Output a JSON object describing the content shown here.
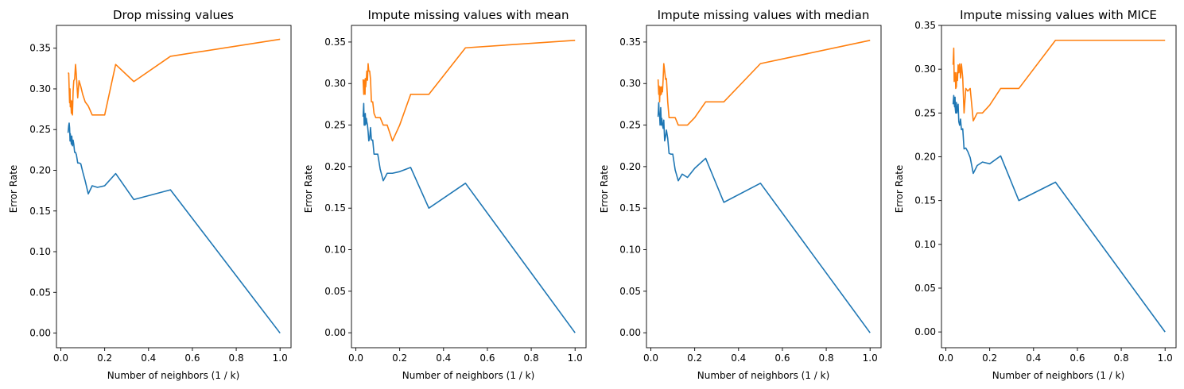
{
  "figure": {
    "colors": {
      "series_0": "#1f77b4",
      "series_1": "#ff7f0e",
      "axis": "#000000"
    }
  },
  "chart_data": [
    {
      "type": "line",
      "title": "Drop missing values",
      "xlabel": "Number of neighbors (1 / k)",
      "ylabel": "Error Rate",
      "xlim": [
        -0.02,
        1.05
      ],
      "ylim": [
        -0.018,
        0.378
      ],
      "xticks": [
        "0.0",
        "0.2",
        "0.4",
        "0.6",
        "0.8",
        "1.0"
      ],
      "yticks": [
        "0.00",
        "0.05",
        "0.10",
        "0.15",
        "0.20",
        "0.25",
        "0.30",
        "0.35"
      ],
      "grid": false,
      "series": [
        {
          "x": [
            0.033,
            0.036,
            0.038,
            0.04,
            0.042,
            0.043,
            0.045,
            0.048,
            0.05,
            0.053,
            0.056,
            0.059,
            0.063,
            0.067,
            0.071,
            0.077,
            0.083,
            0.091,
            0.1,
            0.111,
            0.125,
            0.143,
            0.167,
            0.2,
            0.25,
            0.333,
            0.5,
            1.0
          ],
          "y": [
            0.246,
            0.255,
            0.258,
            0.252,
            0.236,
            0.245,
            0.24,
            0.232,
            0.242,
            0.23,
            0.237,
            0.232,
            0.222,
            0.222,
            0.219,
            0.209,
            0.209,
            0.208,
            0.198,
            0.187,
            0.171,
            0.181,
            0.179,
            0.181,
            0.196,
            0.164,
            0.176,
            0.0
          ]
        },
        {
          "x": [
            0.033,
            0.036,
            0.038,
            0.04,
            0.042,
            0.043,
            0.045,
            0.048,
            0.05,
            0.053,
            0.056,
            0.059,
            0.063,
            0.067,
            0.071,
            0.077,
            0.083,
            0.091,
            0.1,
            0.111,
            0.125,
            0.143,
            0.167,
            0.2,
            0.25,
            0.333,
            0.5,
            1.0
          ],
          "y": [
            0.32,
            0.319,
            0.3,
            0.283,
            0.3,
            0.278,
            0.286,
            0.27,
            0.285,
            0.268,
            0.297,
            0.31,
            0.312,
            0.33,
            0.316,
            0.289,
            0.31,
            0.303,
            0.293,
            0.284,
            0.279,
            0.268,
            0.268,
            0.268,
            0.33,
            0.309,
            0.34,
            0.361
          ]
        }
      ]
    },
    {
      "type": "line",
      "title": "Impute missing values with mean",
      "xlabel": "Number of neighbors (1 / k)",
      "ylabel": "Error Rate",
      "xlim": [
        -0.02,
        1.05
      ],
      "ylim": [
        -0.018,
        0.37
      ],
      "xticks": [
        "0.0",
        "0.2",
        "0.4",
        "0.6",
        "0.8",
        "1.0"
      ],
      "yticks": [
        "0.00",
        "0.05",
        "0.10",
        "0.15",
        "0.20",
        "0.25",
        "0.30",
        "0.35"
      ],
      "grid": false,
      "series": [
        {
          "x": [
            0.033,
            0.036,
            0.038,
            0.04,
            0.042,
            0.043,
            0.045,
            0.048,
            0.05,
            0.053,
            0.056,
            0.059,
            0.063,
            0.067,
            0.071,
            0.077,
            0.083,
            0.091,
            0.1,
            0.111,
            0.125,
            0.143,
            0.167,
            0.2,
            0.25,
            0.333,
            0.5,
            1.0
          ],
          "y": [
            0.26,
            0.276,
            0.25,
            0.263,
            0.25,
            0.264,
            0.251,
            0.258,
            0.254,
            0.25,
            0.242,
            0.231,
            0.234,
            0.247,
            0.232,
            0.232,
            0.215,
            0.215,
            0.215,
            0.197,
            0.183,
            0.192,
            0.192,
            0.194,
            0.199,
            0.15,
            0.18,
            0.0
          ]
        },
        {
          "x": [
            0.033,
            0.036,
            0.038,
            0.04,
            0.042,
            0.043,
            0.045,
            0.048,
            0.05,
            0.053,
            0.056,
            0.059,
            0.063,
            0.067,
            0.071,
            0.077,
            0.083,
            0.091,
            0.1,
            0.111,
            0.125,
            0.143,
            0.167,
            0.2,
            0.25,
            0.333,
            0.5,
            1.0
          ],
          "y": [
            0.305,
            0.287,
            0.304,
            0.3,
            0.287,
            0.306,
            0.296,
            0.306,
            0.315,
            0.304,
            0.324,
            0.315,
            0.315,
            0.305,
            0.278,
            0.278,
            0.264,
            0.259,
            0.259,
            0.259,
            0.25,
            0.25,
            0.231,
            0.25,
            0.287,
            0.287,
            0.343,
            0.352
          ]
        }
      ]
    },
    {
      "type": "line",
      "title": "Impute missing values with median",
      "xlabel": "Number of neighbors (1 / k)",
      "ylabel": "Error Rate",
      "xlim": [
        -0.02,
        1.05
      ],
      "ylim": [
        -0.018,
        0.37
      ],
      "xticks": [
        "0.0",
        "0.2",
        "0.4",
        "0.6",
        "0.8",
        "1.0"
      ],
      "yticks": [
        "0.00",
        "0.05",
        "0.10",
        "0.15",
        "0.20",
        "0.25",
        "0.30",
        "0.35"
      ],
      "grid": false,
      "series": [
        {
          "x": [
            0.033,
            0.036,
            0.038,
            0.04,
            0.042,
            0.043,
            0.045,
            0.048,
            0.05,
            0.053,
            0.056,
            0.059,
            0.063,
            0.067,
            0.071,
            0.077,
            0.083,
            0.091,
            0.1,
            0.111,
            0.125,
            0.143,
            0.167,
            0.2,
            0.25,
            0.333,
            0.5,
            1.0
          ],
          "y": [
            0.26,
            0.277,
            0.264,
            0.262,
            0.25,
            0.257,
            0.271,
            0.25,
            0.258,
            0.25,
            0.246,
            0.256,
            0.231,
            0.236,
            0.244,
            0.234,
            0.216,
            0.215,
            0.215,
            0.196,
            0.183,
            0.191,
            0.187,
            0.198,
            0.21,
            0.157,
            0.18,
            0.0
          ]
        },
        {
          "x": [
            0.033,
            0.036,
            0.038,
            0.04,
            0.042,
            0.043,
            0.045,
            0.048,
            0.05,
            0.053,
            0.056,
            0.059,
            0.063,
            0.067,
            0.071,
            0.077,
            0.083,
            0.091,
            0.1,
            0.111,
            0.125,
            0.143,
            0.167,
            0.2,
            0.25,
            0.333,
            0.5,
            1.0
          ],
          "y": [
            0.305,
            0.287,
            0.297,
            0.278,
            0.295,
            0.286,
            0.296,
            0.287,
            0.296,
            0.29,
            0.305,
            0.324,
            0.315,
            0.305,
            0.306,
            0.278,
            0.259,
            0.259,
            0.259,
            0.259,
            0.25,
            0.25,
            0.25,
            0.259,
            0.278,
            0.278,
            0.324,
            0.352
          ]
        }
      ]
    },
    {
      "type": "line",
      "title": "Impute missing values with MICE",
      "xlabel": "Number of neighbors (1 / k)",
      "ylabel": "Error Rate",
      "xlim": [
        -0.02,
        1.05
      ],
      "ylim": [
        -0.018,
        0.35
      ],
      "xticks": [
        "0.0",
        "0.2",
        "0.4",
        "0.6",
        "0.8",
        "1.0"
      ],
      "yticks": [
        "0.00",
        "0.05",
        "0.10",
        "0.15",
        "0.20",
        "0.25",
        "0.30",
        "0.35"
      ],
      "grid": false,
      "series": [
        {
          "x": [
            0.033,
            0.036,
            0.038,
            0.04,
            0.042,
            0.043,
            0.045,
            0.048,
            0.05,
            0.053,
            0.056,
            0.059,
            0.063,
            0.067,
            0.071,
            0.077,
            0.083,
            0.091,
            0.1,
            0.111,
            0.125,
            0.143,
            0.167,
            0.2,
            0.25,
            0.333,
            0.5,
            1.0
          ],
          "y": [
            0.26,
            0.27,
            0.262,
            0.257,
            0.268,
            0.255,
            0.25,
            0.262,
            0.25,
            0.255,
            0.26,
            0.24,
            0.236,
            0.243,
            0.231,
            0.232,
            0.209,
            0.21,
            0.206,
            0.199,
            0.181,
            0.19,
            0.194,
            0.192,
            0.201,
            0.15,
            0.171,
            0.0
          ]
        },
        {
          "x": [
            0.033,
            0.036,
            0.038,
            0.04,
            0.042,
            0.043,
            0.045,
            0.048,
            0.05,
            0.053,
            0.056,
            0.059,
            0.063,
            0.067,
            0.071,
            0.077,
            0.083,
            0.091,
            0.1,
            0.111,
            0.125,
            0.143,
            0.167,
            0.2,
            0.25,
            0.333,
            0.5,
            1.0
          ],
          "y": [
            0.305,
            0.324,
            0.286,
            0.296,
            0.287,
            0.296,
            0.278,
            0.28,
            0.296,
            0.287,
            0.305,
            0.296,
            0.306,
            0.29,
            0.306,
            0.29,
            0.25,
            0.278,
            0.275,
            0.278,
            0.241,
            0.25,
            0.25,
            0.259,
            0.278,
            0.278,
            0.333,
            0.333
          ]
        }
      ]
    }
  ]
}
